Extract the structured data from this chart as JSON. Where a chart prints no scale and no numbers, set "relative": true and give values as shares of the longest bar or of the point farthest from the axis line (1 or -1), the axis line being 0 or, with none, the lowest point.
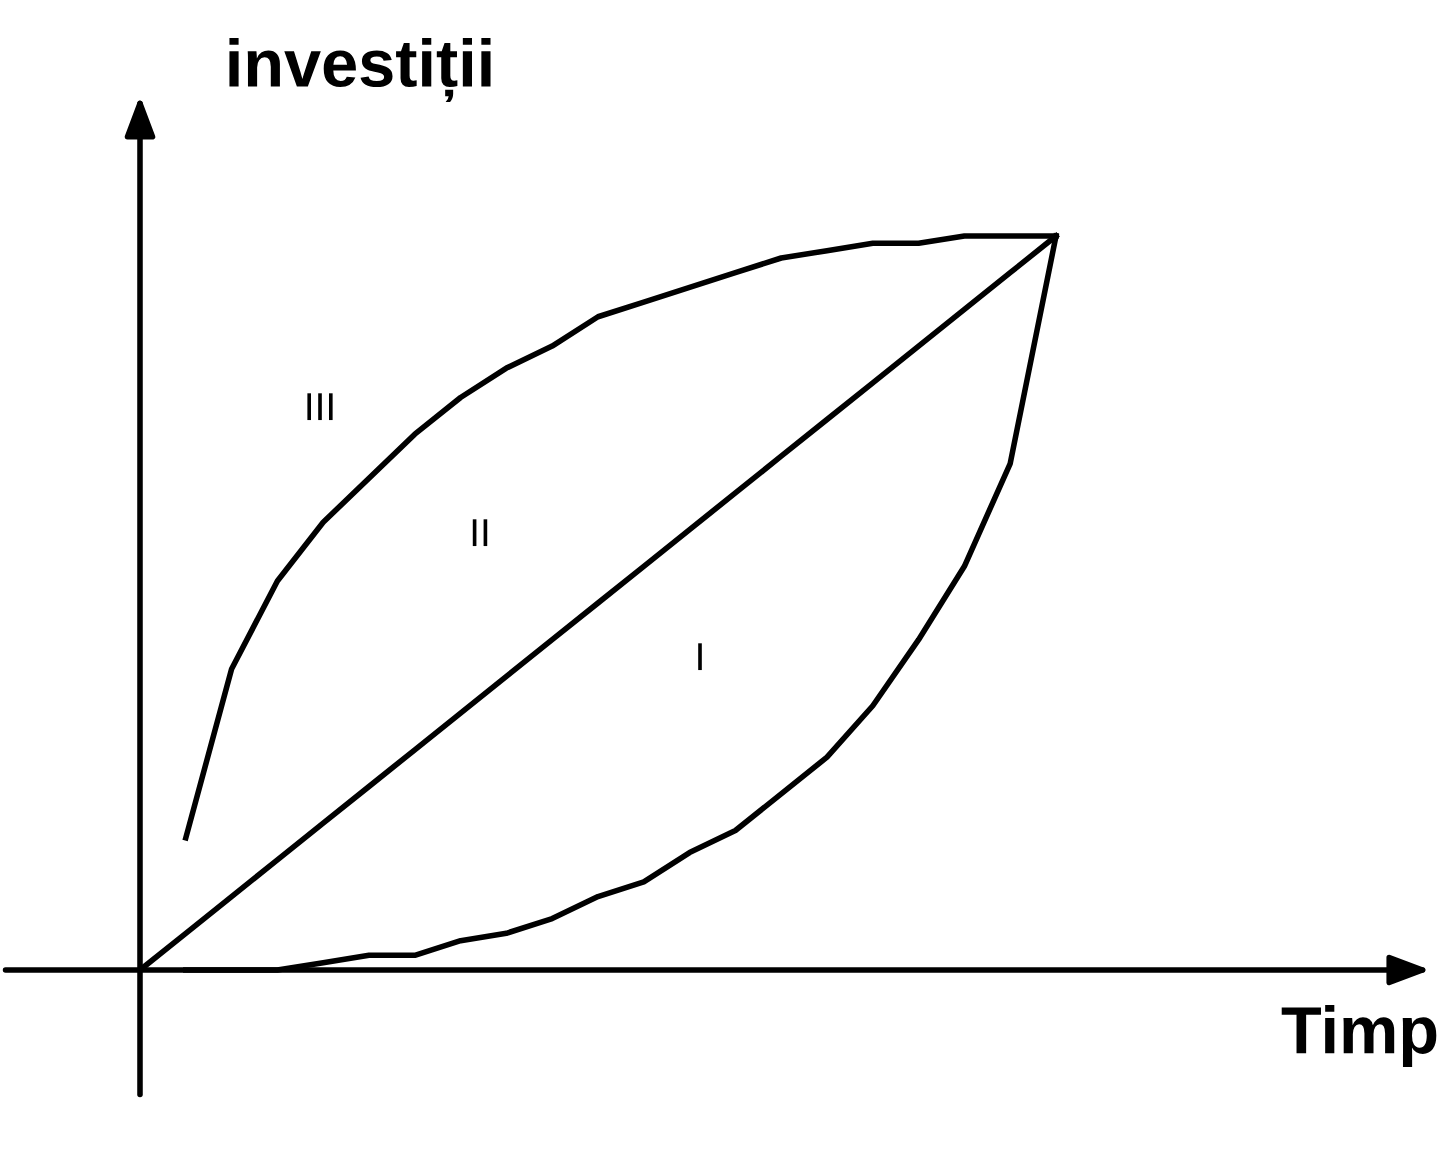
{
  "chart_data": {
    "type": "line",
    "relative": true,
    "xlabel": "Timp",
    "ylabel": "investiții",
    "tick_labels": false,
    "legend": false,
    "marker": "none",
    "line_style": "solid",
    "categories": [
      null,
      null,
      null,
      null,
      null,
      null,
      null,
      null,
      null,
      null,
      null,
      null,
      null,
      null,
      null,
      null,
      null,
      null,
      null,
      null,
      null
    ],
    "series": [
      {
        "color": "#000000",
        "values": [
          null,
          0.18,
          0.41,
          0.53,
          0.61,
          0.67,
          0.73,
          0.78,
          0.82,
          0.85,
          0.89,
          0.91,
          0.93,
          0.95,
          0.97,
          0.98,
          0.99,
          0.99,
          1.0,
          1.0,
          1.0
        ]
      },
      {
        "color": "#000000",
        "values": [
          0,
          0.05,
          0.1,
          0.15,
          0.2,
          0.25,
          0.3,
          0.35,
          0.4,
          0.45,
          0.5,
          0.55,
          0.6,
          0.65,
          0.7,
          0.75,
          0.8,
          0.85,
          0.9,
          0.95,
          1.0
        ]
      },
      {
        "color": "#000000",
        "values": [
          null,
          0,
          0,
          0,
          0.01,
          0.02,
          0.02,
          0.04,
          0.05,
          0.07,
          0.1,
          0.12,
          0.16,
          0.19,
          0.24,
          0.29,
          0.36,
          0.45,
          0.55,
          0.69,
          1.0
        ]
      }
    ],
    "annotations": [
      "III",
      "II",
      "I"
    ]
  }
}
